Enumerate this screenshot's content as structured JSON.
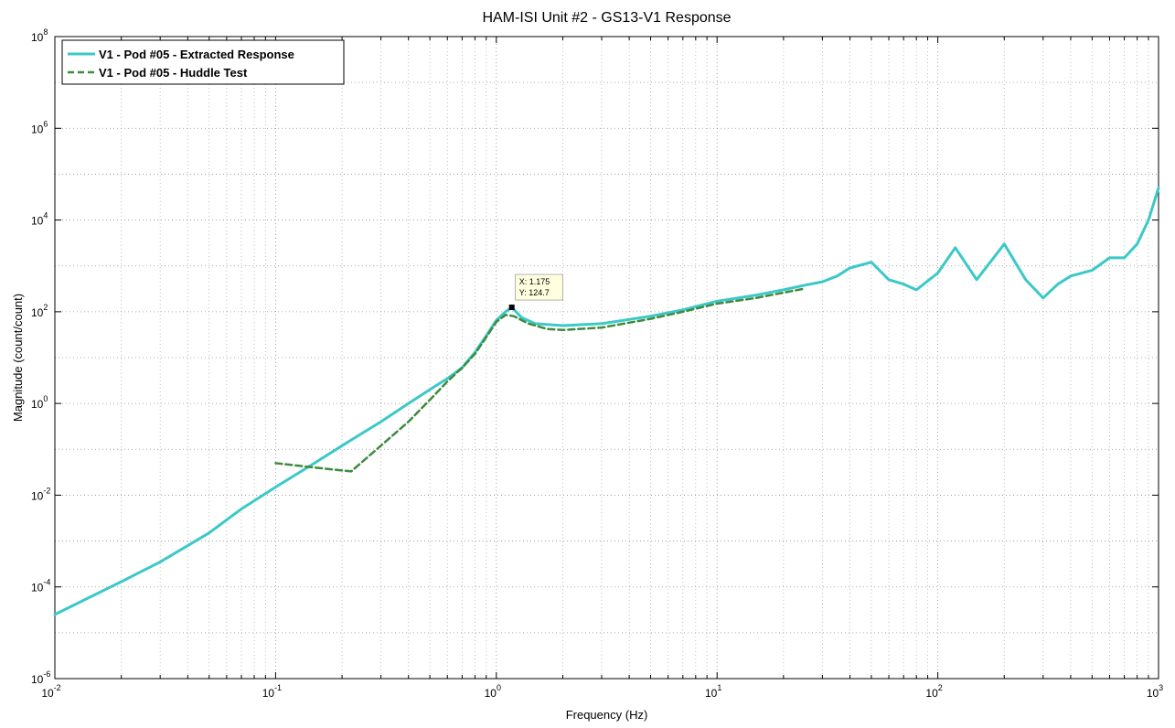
{
  "chart_data": {
    "type": "line",
    "title": "HAM-ISI Unit #2 - GS13-V1 Response",
    "xlabel": "Frequency (Hz)",
    "ylabel": "Magnitude (count/count)",
    "xscale": "log",
    "yscale": "log",
    "xlim": [
      0.01,
      1000
    ],
    "ylim": [
      1e-06,
      100000000
    ],
    "grid": true,
    "legend_position": "top-left",
    "x_ticks": [
      {
        "base": "10",
        "exp": "-2"
      },
      {
        "base": "10",
        "exp": "-1"
      },
      {
        "base": "10",
        "exp": "0"
      },
      {
        "base": "10",
        "exp": "1"
      },
      {
        "base": "10",
        "exp": "2"
      },
      {
        "base": "10",
        "exp": "3"
      }
    ],
    "y_ticks": [
      {
        "base": "10",
        "exp": "-6"
      },
      {
        "base": "10",
        "exp": "-4"
      },
      {
        "base": "10",
        "exp": "-2"
      },
      {
        "base": "10",
        "exp": "0"
      },
      {
        "base": "10",
        "exp": "2"
      },
      {
        "base": "10",
        "exp": "4"
      },
      {
        "base": "10",
        "exp": "6"
      },
      {
        "base": "10",
        "exp": "8"
      }
    ],
    "series": [
      {
        "name": "V1 - Pod #05 - Extracted Response",
        "color": "#3cc8c8",
        "style": "solid",
        "x": [
          0.01,
          0.02,
          0.03,
          0.05,
          0.07,
          0.1,
          0.15,
          0.2,
          0.3,
          0.4,
          0.5,
          0.6,
          0.7,
          0.8,
          0.9,
          1.0,
          1.1,
          1.175,
          1.3,
          1.5,
          2,
          3,
          5,
          7,
          10,
          15,
          20,
          25,
          30,
          35,
          40,
          50,
          60,
          70,
          80,
          100,
          120,
          150,
          200,
          250,
          300,
          350,
          400,
          500,
          600,
          700,
          800,
          900,
          1000
        ],
        "y": [
          2.5e-05,
          0.00013,
          0.00035,
          0.0015,
          0.005,
          0.015,
          0.05,
          0.12,
          0.4,
          1.0,
          2.0,
          3.5,
          6,
          13,
          30,
          65,
          100,
          124.7,
          75,
          55,
          50,
          55,
          80,
          110,
          170,
          230,
          300,
          380,
          450,
          600,
          900,
          1200,
          500,
          400,
          300,
          700,
          2500,
          500,
          3000,
          500,
          200,
          400,
          600,
          800,
          1500,
          1500,
          3000,
          10000,
          50000
        ]
      },
      {
        "name": "V1 - Pod #05 - Huddle Test",
        "color": "#3f8a3f",
        "style": "dashed",
        "x": [
          0.1,
          0.15,
          0.22,
          0.3,
          0.4,
          0.5,
          0.6,
          0.7,
          0.8,
          0.9,
          1.0,
          1.1,
          1.2,
          1.4,
          1.7,
          2,
          3,
          5,
          7,
          10,
          15,
          20,
          25
        ],
        "y": [
          0.05,
          0.04,
          0.033,
          0.12,
          0.4,
          1.2,
          3.0,
          6,
          12,
          28,
          60,
          85,
          80,
          55,
          42,
          40,
          45,
          70,
          100,
          150,
          200,
          260,
          320
        ]
      }
    ],
    "annotation": {
      "type": "datatip",
      "x": 1.175,
      "y": 124.7,
      "label_x": "X: 1.175",
      "label_y": "Y: 124.7"
    }
  }
}
